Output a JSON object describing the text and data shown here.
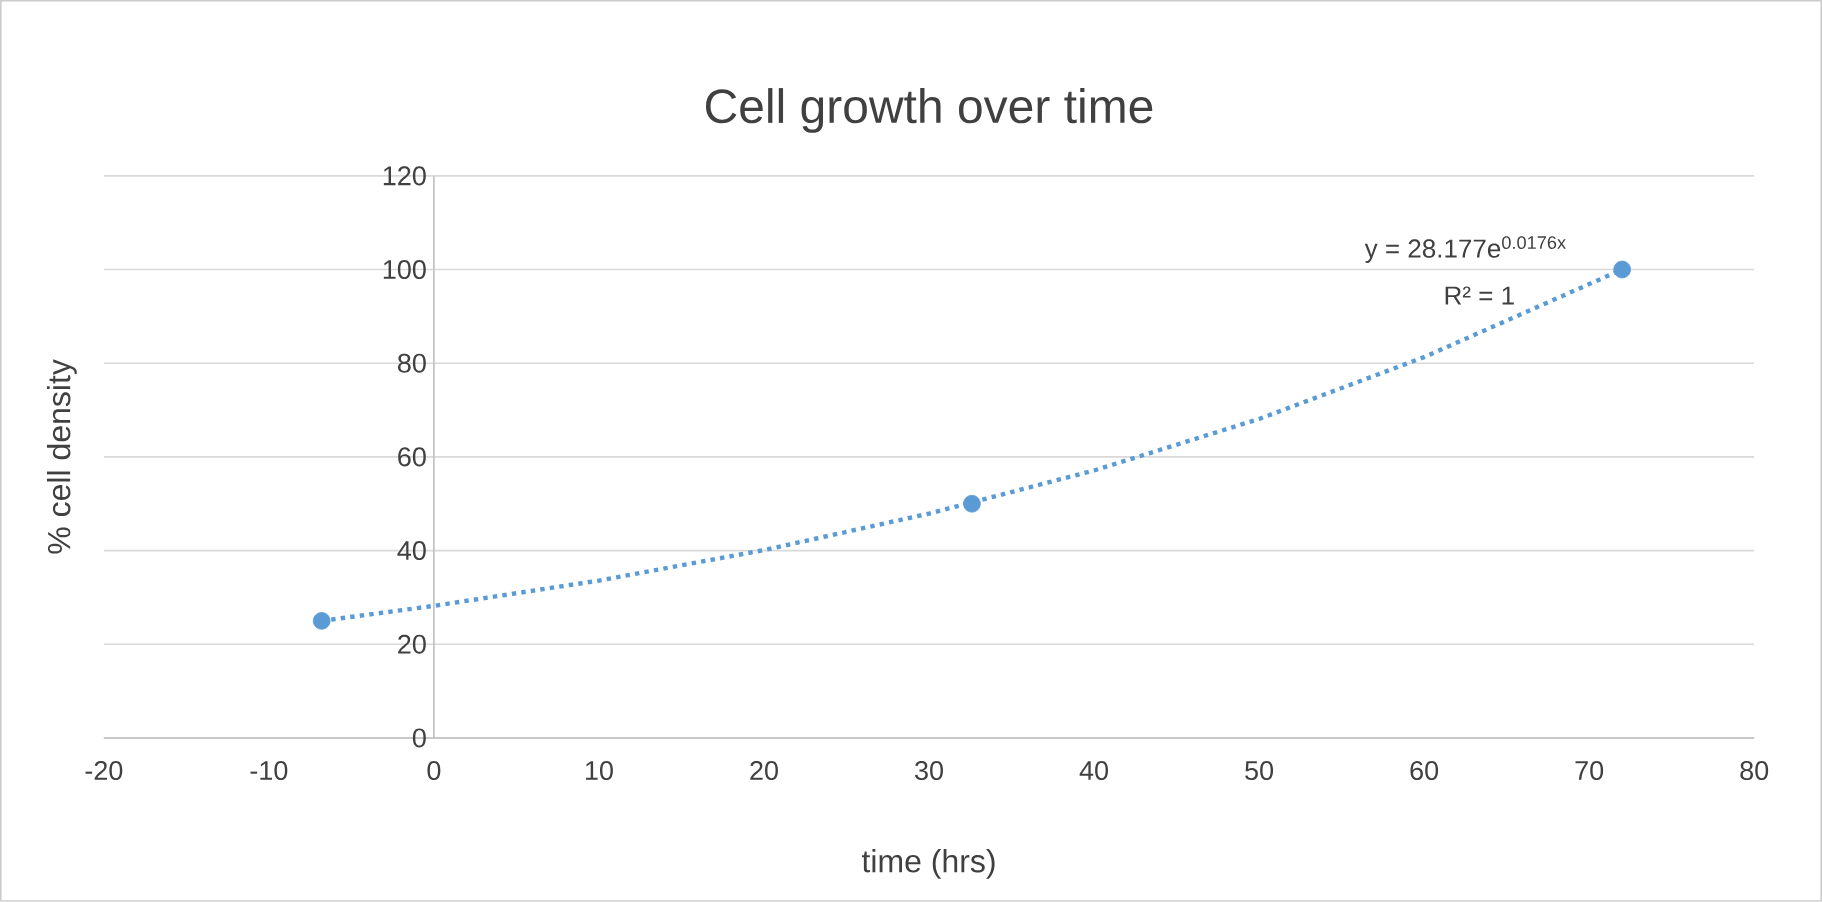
{
  "chart_data": {
    "type": "scatter",
    "title": "Cell growth over time",
    "xlabel": "time (hrs)",
    "ylabel": "% cell density",
    "xlim": [
      -20,
      80
    ],
    "xticks": [
      -20,
      -10,
      0,
      10,
      20,
      30,
      40,
      50,
      60,
      70,
      80
    ],
    "ylim": [
      0,
      120
    ],
    "yticks": [
      0,
      20,
      40,
      60,
      80,
      100,
      120
    ],
    "grid": "y",
    "series": [
      {
        "marker": "circle",
        "color": "#5b9bd5",
        "x": [
          -6.8,
          32.6,
          72
        ],
        "values": [
          25,
          50,
          100
        ]
      },
      {
        "type": "line",
        "marker": "none",
        "line_style": "dotted",
        "color": "#5b9bd5",
        "x": [
          -6.8,
          0,
          10,
          20,
          30,
          40,
          50,
          60,
          72
        ],
        "values": [
          25,
          28.2,
          33.6,
          40.1,
          47.9,
          57.1,
          68.1,
          81.3,
          100
        ]
      }
    ],
    "annotations": [
      "y = 28.177e$^{0.0176x}$",
      "R² = 1"
    ]
  }
}
